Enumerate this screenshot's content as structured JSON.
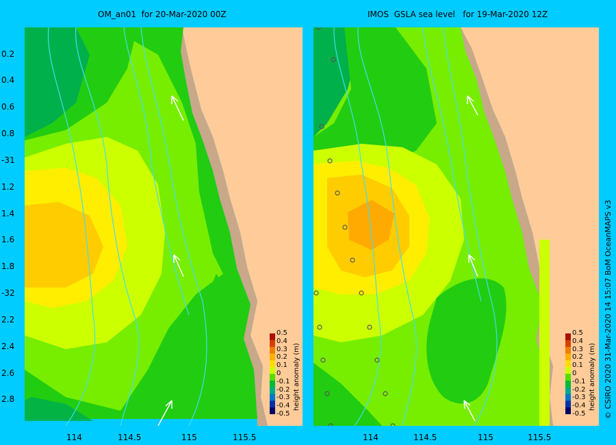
{
  "panels": [
    {
      "id": "left",
      "title": "OM_an01  for 20-Mar-2020 00Z"
    },
    {
      "id": "right",
      "title": "IMOS  GSLA sea level   for 19-Mar-2020 12Z"
    }
  ],
  "lat_ticks": [
    "0.2",
    "0.4",
    "0.6",
    "0.8",
    "-31",
    "1.2",
    "1.4",
    "1.6",
    "1.8",
    "-32",
    "2.2",
    "2.4",
    "2.6",
    "2.8"
  ],
  "lon_ticks": [
    "114",
    "114.5",
    "115",
    "115.5"
  ],
  "colorbar": {
    "title": "height anomaly (m)",
    "labels": [
      "0.5",
      "0.4",
      "0.3",
      "0.2",
      "0.1",
      "0",
      "-0.1",
      "-0.2",
      "-0.3",
      "-0.4",
      "-0.5"
    ],
    "colors": [
      "#aa1100",
      "#d84000",
      "#f08000",
      "#ffb000",
      "#ffdd00",
      "#ccff00",
      "#55dd00",
      "#00bb33",
      "#00aa88",
      "#0077cc",
      "#0033aa",
      "#000066"
    ]
  },
  "palette": {
    "sea": "#00ccff",
    "land": "#ffcc99",
    "shelf": "#c8a888",
    "green_dark": "#00b04a",
    "green": "#22cc11",
    "green_light": "#77ee00",
    "yellow_green": "#ccff00",
    "yellow": "#ffee00",
    "yellow_orange": "#ffcc00",
    "orange": "#ffaa00"
  },
  "credit": "© CSIRO 2020   31-Mar-2020 14 15:07 BoM OceanMAPS v3"
}
